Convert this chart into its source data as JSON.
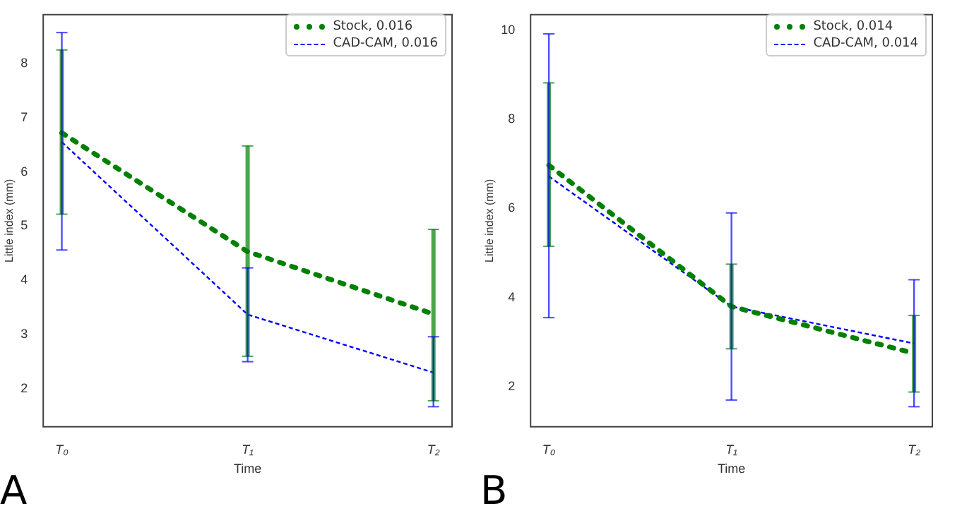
{
  "chart_data": [
    {
      "type": "line",
      "xlabel": "Time",
      "ylabel": "Little index (mm)",
      "categories": [
        "T₀",
        "T₁",
        "T₂"
      ],
      "ylim": [
        1.3,
        8.9
      ],
      "yticks": [
        2,
        3,
        4,
        5,
        6,
        7,
        8
      ],
      "grid": false,
      "legend": "top right",
      "annotations": [
        "A"
      ],
      "series": [
        {
          "name": "Stock, 0.016",
          "color": "#008000",
          "line_style": "dotted",
          "values": [
            6.72,
            4.53,
            3.38
          ],
          "errors": [
            [
              5.22,
              8.25
            ],
            [
              2.6,
              6.48
            ],
            [
              1.78,
              4.94
            ]
          ]
        },
        {
          "name": "CAD-CAM, 0.016",
          "color": "#0000ff",
          "line_style": "dashed",
          "values": [
            6.55,
            3.37,
            2.3
          ],
          "errors": [
            [
              4.56,
              8.57
            ],
            [
              2.5,
              4.23
            ],
            [
              1.67,
              2.96
            ]
          ]
        }
      ]
    },
    {
      "type": "line",
      "xlabel": "Time",
      "ylabel": "Little index (mm)",
      "categories": [
        "T₀",
        "T₁",
        "T₂"
      ],
      "ylim": [
        1.1,
        10.35
      ],
      "yticks": [
        2,
        4,
        6,
        8,
        10
      ],
      "grid": false,
      "legend": "top right",
      "annotations": [
        "B"
      ],
      "series": [
        {
          "name": "Stock, 0.014",
          "color": "#008000",
          "line_style": "dotted",
          "values": [
            6.97,
            3.8,
            2.75
          ],
          "errors": [
            [
              5.15,
              8.82
            ],
            [
              2.85,
              4.75
            ],
            [
              1.88,
              3.6
            ]
          ]
        },
        {
          "name": "CAD-CAM, 0.014",
          "color": "#0000ff",
          "line_style": "dashed",
          "values": [
            6.72,
            3.8,
            2.97
          ],
          "errors": [
            [
              3.55,
              9.92
            ],
            [
              1.7,
              5.9
            ],
            [
              1.55,
              4.4
            ]
          ]
        }
      ]
    }
  ]
}
